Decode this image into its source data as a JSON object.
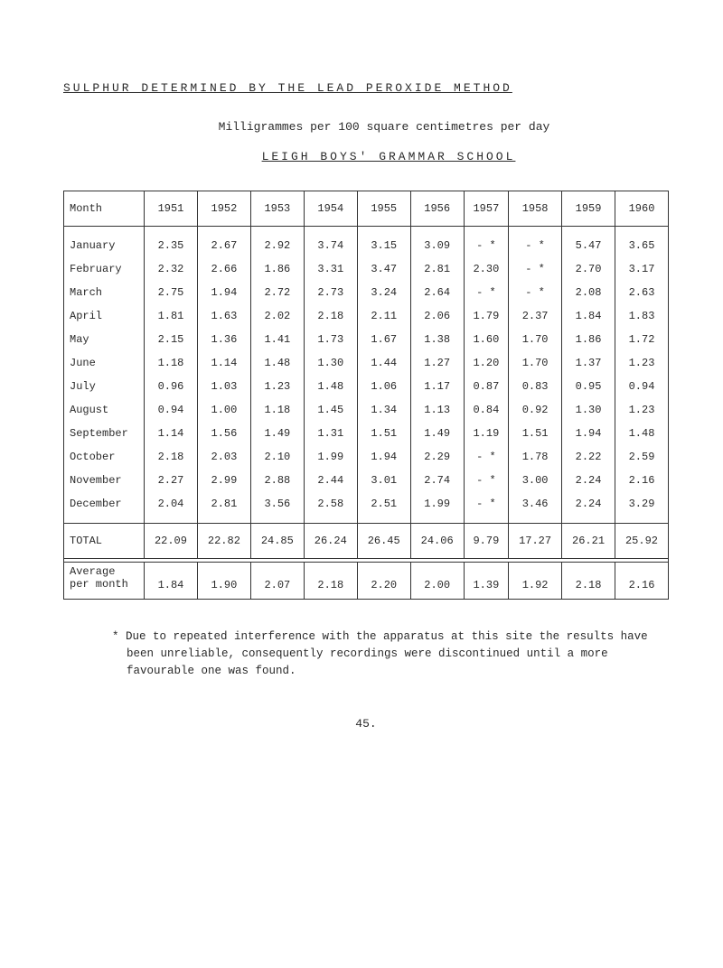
{
  "title": "SULPHUR DETERMINED BY THE LEAD PEROXIDE METHOD",
  "subtitle": "Milligrammes per 100 square centimetres per day",
  "subtitle2": "LEIGH BOYS' GRAMMAR SCHOOL",
  "table": {
    "header": [
      "Month",
      "1951",
      "1952",
      "1953",
      "1954",
      "1955",
      "1956",
      "1957",
      "1958",
      "1959",
      "1960"
    ],
    "rows": [
      [
        "January",
        "2.35",
        "2.67",
        "2.92",
        "3.74",
        "3.15",
        "3.09",
        "- *",
        "- *",
        "5.47",
        "3.65"
      ],
      [
        "February",
        "2.32",
        "2.66",
        "1.86",
        "3.31",
        "3.47",
        "2.81",
        "2.30",
        "- *",
        "2.70",
        "3.17"
      ],
      [
        "March",
        "2.75",
        "1.94",
        "2.72",
        "2.73",
        "3.24",
        "2.64",
        "- *",
        "- *",
        "2.08",
        "2.63"
      ],
      [
        "April",
        "1.81",
        "1.63",
        "2.02",
        "2.18",
        "2.11",
        "2.06",
        "1.79",
        "2.37",
        "1.84",
        "1.83"
      ],
      [
        "May",
        "2.15",
        "1.36",
        "1.41",
        "1.73",
        "1.67",
        "1.38",
        "1.60",
        "1.70",
        "1.86",
        "1.72"
      ],
      [
        "June",
        "1.18",
        "1.14",
        "1.48",
        "1.30",
        "1.44",
        "1.27",
        "1.20",
        "1.70",
        "1.37",
        "1.23"
      ],
      [
        "July",
        "0.96",
        "1.03",
        "1.23",
        "1.48",
        "1.06",
        "1.17",
        "0.87",
        "0.83",
        "0.95",
        "0.94"
      ],
      [
        "August",
        "0.94",
        "1.00",
        "1.18",
        "1.45",
        "1.34",
        "1.13",
        "0.84",
        "0.92",
        "1.30",
        "1.23"
      ],
      [
        "September",
        "1.14",
        "1.56",
        "1.49",
        "1.31",
        "1.51",
        "1.49",
        "1.19",
        "1.51",
        "1.94",
        "1.48"
      ],
      [
        "October",
        "2.18",
        "2.03",
        "2.10",
        "1.99",
        "1.94",
        "2.29",
        "- *",
        "1.78",
        "2.22",
        "2.59"
      ],
      [
        "November",
        "2.27",
        "2.99",
        "2.88",
        "2.44",
        "3.01",
        "2.74",
        "- *",
        "3.00",
        "2.24",
        "2.16"
      ],
      [
        "December",
        "2.04",
        "2.81",
        "3.56",
        "2.58",
        "2.51",
        "1.99",
        "- *",
        "3.46",
        "2.24",
        "3.29"
      ]
    ],
    "total": [
      "TOTAL",
      "22.09",
      "22.82",
      "24.85",
      "26.24",
      "26.45",
      "24.06",
      "9.79",
      "17.27",
      "26.21",
      "25.92"
    ],
    "avg_label1": "Average",
    "avg_label2": "per month",
    "average": [
      "1.84",
      "1.90",
      "2.07",
      "2.18",
      "2.20",
      "2.00",
      "1.39",
      "1.92",
      "2.18",
      "2.16"
    ]
  },
  "footnote": "*  Due to repeated interference with the apparatus at this site the results have been unreliable, consequently recordings were discontinued until a more favourable one was found.",
  "pagenum": "45."
}
